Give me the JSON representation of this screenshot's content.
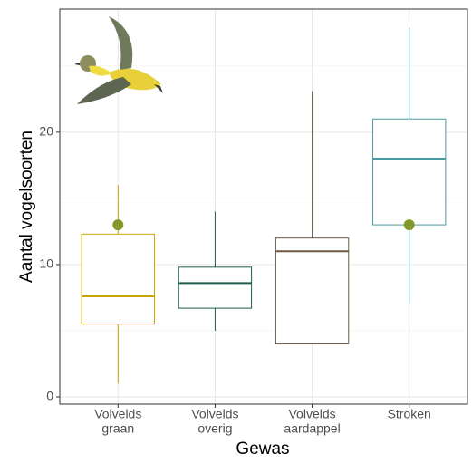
{
  "chart_data": {
    "type": "boxplot",
    "x_label": "Gewas",
    "y_label": "Aantal vogelsoorten",
    "categories": [
      [
        "Volvelds",
        "graan"
      ],
      [
        "Volvelds",
        "overig"
      ],
      [
        "Volvelds",
        "aardappel"
      ],
      [
        "Stroken"
      ]
    ],
    "colors": [
      "#c9a400",
      "#1f5c50",
      "#6b5a45",
      "#4a9aa6"
    ],
    "min": [
      1,
      5,
      4,
      7
    ],
    "q1": [
      5.5,
      6.7,
      4,
      13
    ],
    "median": [
      7.6,
      8.6,
      11,
      18
    ],
    "q3": [
      12.3,
      9.8,
      12,
      21
    ],
    "max": [
      16,
      14,
      23.1,
      27.9
    ],
    "points": {
      "color": "#84982a",
      "values": [
        13,
        null,
        null,
        13
      ]
    },
    "ylim": [
      -0.55,
      29.3
    ],
    "yticks": [
      0,
      10,
      20
    ],
    "y_minor_gridlines": [
      5,
      15,
      25
    ],
    "grid": true
  }
}
